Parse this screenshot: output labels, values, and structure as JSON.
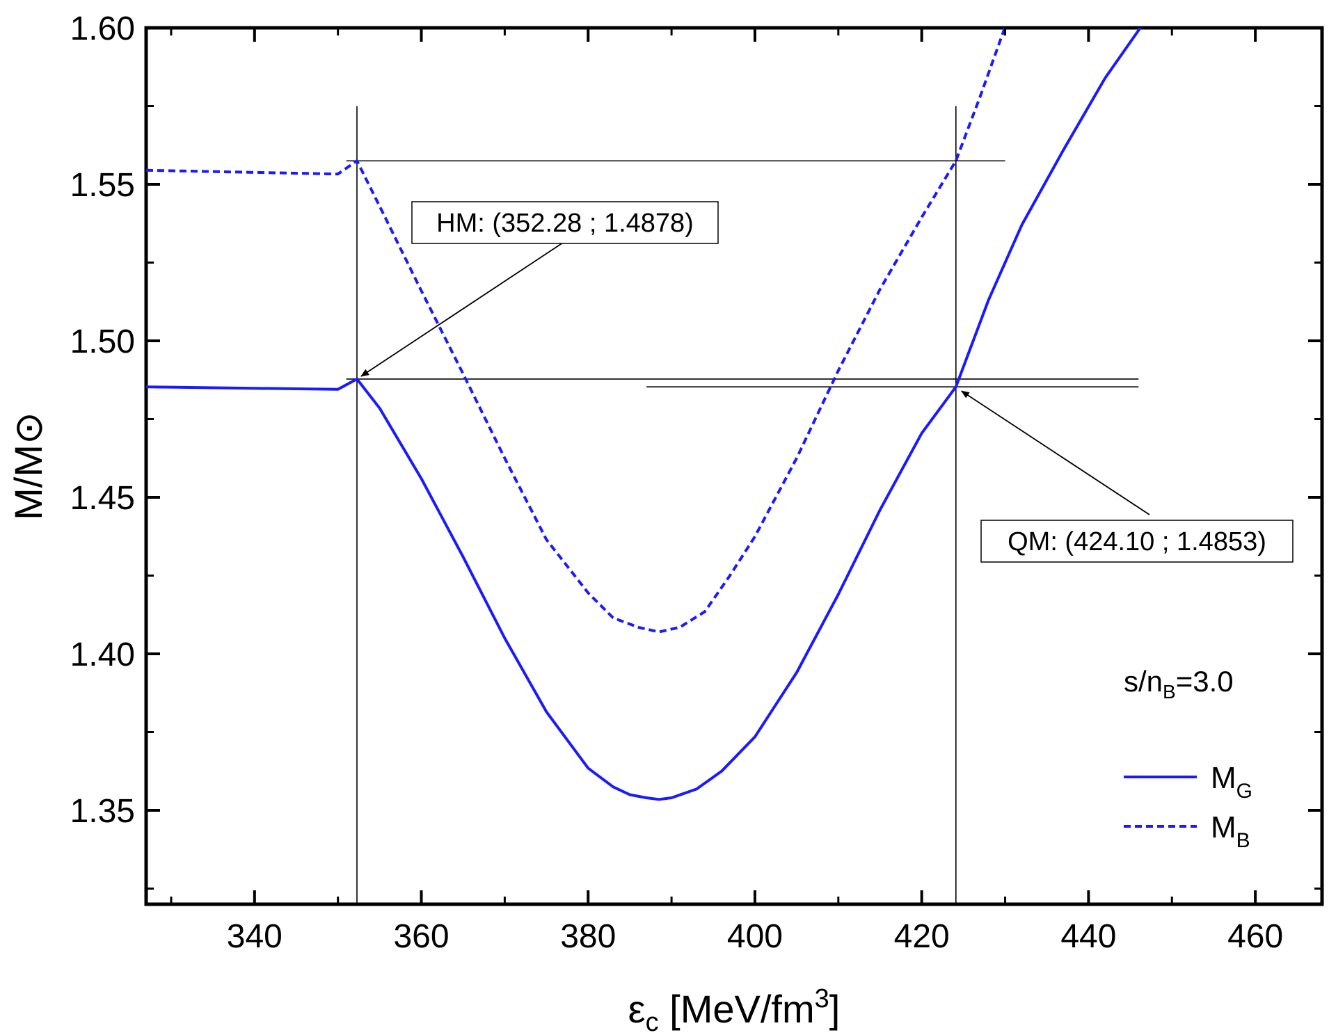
{
  "chart_data": {
    "type": "line",
    "xlabel": "εc [MeV/fm3]",
    "xlabel_parts": {
      "base": "ε",
      "sub": "c",
      "rest": " [MeV/fm",
      "sup": "3",
      "close": "]"
    },
    "ylabel": "M/M⊙",
    "xlim": [
      327,
      468
    ],
    "ylim": [
      1.32,
      1.6
    ],
    "xticks": [
      340,
      360,
      380,
      400,
      420,
      440,
      460
    ],
    "xtick_labels": [
      "340",
      "360",
      "380",
      "400",
      "420",
      "440",
      "460"
    ],
    "yticks": [
      1.35,
      1.4,
      1.45,
      1.5,
      1.55,
      1.6
    ],
    "ytick_labels": [
      "1.35",
      "1.40",
      "1.45",
      "1.50",
      "1.55",
      "1.60"
    ],
    "grid": false,
    "parameter_label": {
      "prefix": "s/n",
      "sub": "B",
      "suffix": "=3.0"
    },
    "series": [
      {
        "name": "MG",
        "label_base": "M",
        "label_sub": "G",
        "style": "solid",
        "color": "#1a1aff",
        "x": [
          327,
          350,
          352.28,
          355,
          360,
          365,
          370,
          375,
          380,
          383,
          385,
          387,
          388.5,
          390,
          393,
          396,
          400,
          405,
          410,
          415,
          420,
          424.1,
          428,
          432,
          437,
          442,
          447
        ],
        "y": [
          1.4853,
          1.4845,
          1.4878,
          1.4785,
          1.456,
          1.431,
          1.405,
          1.3815,
          1.3635,
          1.3575,
          1.355,
          1.354,
          1.3535,
          1.354,
          1.3568,
          1.3625,
          1.3735,
          1.394,
          1.419,
          1.446,
          1.4705,
          1.4853,
          1.513,
          1.537,
          1.561,
          1.584,
          1.603
        ]
      },
      {
        "name": "MB",
        "label_base": "M",
        "label_sub": "B",
        "style": "dashed",
        "color": "#1a1aff",
        "x": [
          327,
          350,
          352.28,
          355,
          360,
          365,
          370,
          375,
          380,
          383,
          386,
          388.5,
          391,
          394,
          397,
          400,
          405,
          410,
          415,
          420,
          424.1,
          427,
          430.5
        ],
        "y": [
          1.5545,
          1.5533,
          1.5575,
          1.543,
          1.516,
          1.4895,
          1.4625,
          1.4365,
          1.4195,
          1.4115,
          1.4085,
          1.407,
          1.4085,
          1.4135,
          1.425,
          1.4375,
          1.4625,
          1.4905,
          1.5165,
          1.5395,
          1.5575,
          1.578,
          1.604
        ]
      }
    ],
    "reference_lines": {
      "vertical": [
        352.28,
        424.1
      ],
      "horizontal_top": {
        "y": 1.5575,
        "x_from": 351,
        "x_to": 430
      },
      "horizontal_mid1": {
        "y": 1.4878,
        "x_from": 351,
        "x_to": 446
      },
      "horizontal_mid2": {
        "y": 1.4853,
        "x_from": 387,
        "x_to": 446
      }
    },
    "annotations": [
      {
        "text": "HM: (352.28 ; 1.4878)",
        "point": [
          352.28,
          1.4878
        ]
      },
      {
        "text": "QM: (424.10 ; 1.4853)",
        "point": [
          424.1,
          1.4853
        ]
      }
    ]
  }
}
